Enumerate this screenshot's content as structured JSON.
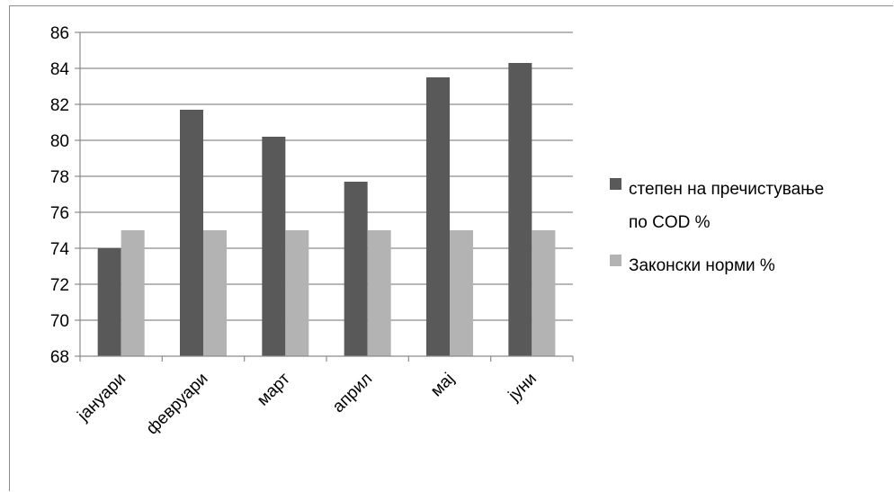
{
  "chart_data": {
    "type": "bar",
    "categories": [
      "јануари",
      "февруари",
      "март",
      "април",
      "мај",
      "јуни"
    ],
    "series": [
      {
        "name": "степен на пречистување по COD %",
        "color": "#595959",
        "values": [
          74.0,
          81.7,
          80.2,
          77.7,
          83.5,
          84.3
        ]
      },
      {
        "name": "Законски норми %",
        "color": "#b3b3b3",
        "values": [
          75,
          75,
          75,
          75,
          75,
          75
        ]
      }
    ],
    "legend_lines": [
      [
        "степен на пречистување",
        "по COD %"
      ],
      [
        "Законски норми %"
      ]
    ],
    "ylim": [
      68,
      86
    ],
    "yticks": [
      68,
      70,
      72,
      74,
      76,
      78,
      80,
      82,
      84,
      86
    ],
    "grid": true,
    "legend_position": "right"
  }
}
